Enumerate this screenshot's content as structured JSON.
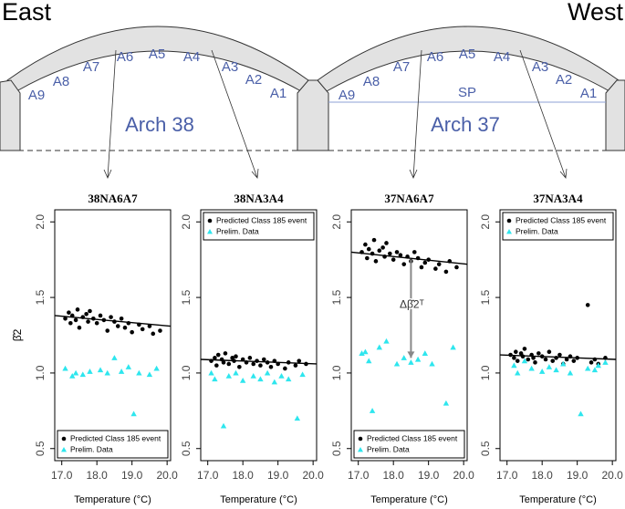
{
  "diagram": {
    "east": "East",
    "west": "West",
    "arches": [
      {
        "name": "Arch 38",
        "labels": [
          "A9",
          "A8",
          "A7",
          "A6",
          "A5",
          "A4",
          "A3",
          "A2",
          "A1"
        ]
      },
      {
        "name": "Arch 37",
        "labels": [
          "A9",
          "A8",
          "A7",
          "A6",
          "A5",
          "A4",
          "A3",
          "A2",
          "A1"
        ],
        "sp": "SP"
      }
    ]
  },
  "chart_data": [
    {
      "type": "scatter",
      "title": "38NA6A7",
      "ylabel": "β̂2",
      "xlabel": "Temperature (°C)",
      "legend": "bottom-left",
      "xlim": [
        16.8,
        20.1
      ],
      "ylim": [
        0.42,
        2.08
      ],
      "xticks": [
        {
          "value": 17,
          "label": "17.0"
        },
        {
          "value": 18,
          "label": "18.0"
        },
        {
          "value": 19,
          "label": "19.0"
        },
        {
          "value": 20,
          "label": "20.0"
        }
      ],
      "yticks": [
        {
          "value": 0.5,
          "label": "0.5"
        },
        {
          "value": 1,
          "label": "1.0"
        },
        {
          "value": 1.5,
          "label": "1.5"
        },
        {
          "value": 2,
          "label": "2.0"
        }
      ],
      "series": [
        {
          "name": "Predicted Class 185 event",
          "color": "#000000",
          "marker": "circle",
          "x": [
            17.1,
            17.2,
            17.25,
            17.3,
            17.4,
            17.45,
            17.5,
            17.6,
            17.7,
            17.75,
            17.8,
            17.9,
            18.0,
            18.1,
            18.2,
            18.3,
            18.4,
            18.5,
            18.6,
            18.7,
            18.8,
            18.9,
            19.0,
            19.2,
            19.3,
            19.5,
            19.6,
            19.8
          ],
          "values": [
            1.36,
            1.4,
            1.33,
            1.38,
            1.35,
            1.42,
            1.3,
            1.37,
            1.39,
            1.34,
            1.41,
            1.36,
            1.33,
            1.38,
            1.35,
            1.28,
            1.37,
            1.34,
            1.31,
            1.36,
            1.3,
            1.33,
            1.27,
            1.32,
            1.29,
            1.31,
            1.26,
            1.28
          ]
        },
        {
          "name": "Prelim. Data",
          "color": "#2ee6ee",
          "marker": "triangle",
          "x": [
            17.1,
            17.3,
            17.4,
            17.6,
            17.8,
            18.1,
            18.3,
            18.5,
            18.7,
            18.9,
            19.05,
            19.2,
            19.5,
            19.7
          ],
          "values": [
            1.03,
            0.98,
            1.0,
            0.99,
            1.01,
            1.02,
            1.0,
            1.1,
            1.01,
            1.04,
            0.73,
            1.0,
            0.99,
            1.03
          ]
        }
      ],
      "fit": {
        "x": [
          16.8,
          20.1
        ],
        "y": [
          1.38,
          1.31
        ]
      }
    },
    {
      "type": "scatter",
      "title": "38NA3A4",
      "xlabel": "Temperature (°C)",
      "legend": "top-left",
      "xlim": [
        16.8,
        20.1
      ],
      "ylim": [
        0.42,
        2.08
      ],
      "xticks": [
        {
          "value": 17,
          "label": "17.0"
        },
        {
          "value": 18,
          "label": "18.0"
        },
        {
          "value": 19,
          "label": "19.0"
        },
        {
          "value": 20,
          "label": "20.0"
        }
      ],
      "yticks": [
        {
          "value": 0.5,
          "label": "0.5"
        },
        {
          "value": 1,
          "label": "1.0"
        },
        {
          "value": 1.5,
          "label": "1.5"
        },
        {
          "value": 2,
          "label": "2.0"
        }
      ],
      "series": [
        {
          "name": "Predicted Class 185 event",
          "color": "#000000",
          "marker": "circle",
          "x": [
            17.1,
            17.2,
            17.25,
            17.3,
            17.4,
            17.45,
            17.5,
            17.6,
            17.7,
            17.75,
            17.8,
            17.9,
            18.0,
            18.1,
            18.2,
            18.3,
            18.4,
            18.5,
            18.6,
            18.7,
            18.8,
            18.9,
            19.0,
            19.2,
            19.3,
            19.5,
            19.6,
            19.8
          ],
          "values": [
            1.08,
            1.1,
            1.05,
            1.12,
            1.09,
            1.07,
            1.13,
            1.06,
            1.1,
            1.08,
            1.11,
            1.04,
            1.09,
            1.07,
            1.1,
            1.06,
            1.08,
            1.05,
            1.09,
            1.07,
            1.04,
            1.08,
            1.06,
            1.03,
            1.07,
            1.05,
            1.08,
            1.06
          ]
        },
        {
          "name": "Prelim. Data",
          "color": "#2ee6ee",
          "marker": "triangle",
          "x": [
            17.1,
            17.2,
            17.45,
            17.6,
            17.8,
            18.0,
            18.3,
            18.5,
            18.7,
            18.9,
            19.1,
            19.3,
            19.55,
            19.7
          ],
          "values": [
            1.0,
            0.96,
            0.65,
            0.98,
            1.0,
            0.95,
            0.98,
            0.96,
            1.0,
            0.94,
            0.98,
            0.96,
            0.7,
            0.99
          ]
        }
      ],
      "fit": {
        "x": [
          16.8,
          20.1
        ],
        "y": [
          1.09,
          1.06
        ]
      }
    },
    {
      "type": "scatter",
      "title": "37NA6A7",
      "xlabel": "Temperature (°C)",
      "legend": "bottom-left",
      "annotation": "Δβ̂2ᵀ",
      "arrow": {
        "x": 18.5,
        "y": [
          1.75,
          1.1
        ]
      },
      "xlim": [
        16.8,
        20.1
      ],
      "ylim": [
        0.42,
        2.08
      ],
      "xticks": [
        {
          "value": 17,
          "label": "17.0"
        },
        {
          "value": 18,
          "label": "18.0"
        },
        {
          "value": 19,
          "label": "19.0"
        },
        {
          "value": 20,
          "label": "20.0"
        }
      ],
      "yticks": [
        {
          "value": 0.5,
          "label": "0.5"
        },
        {
          "value": 1,
          "label": "1.0"
        },
        {
          "value": 1.5,
          "label": "1.5"
        },
        {
          "value": 2,
          "label": "2.0"
        }
      ],
      "series": [
        {
          "name": "Predicted Class 185 event",
          "color": "#000000",
          "marker": "circle",
          "x": [
            17.1,
            17.2,
            17.25,
            17.3,
            17.4,
            17.45,
            17.5,
            17.6,
            17.7,
            17.75,
            17.8,
            17.9,
            18.0,
            18.1,
            18.2,
            18.3,
            18.4,
            18.5,
            18.6,
            18.7,
            18.8,
            18.9,
            19.0,
            19.2,
            19.3,
            19.5,
            19.6,
            19.8
          ],
          "values": [
            1.8,
            1.85,
            1.76,
            1.82,
            1.79,
            1.88,
            1.74,
            1.81,
            1.83,
            1.77,
            1.86,
            1.79,
            1.75,
            1.8,
            1.78,
            1.72,
            1.77,
            1.74,
            1.8,
            1.76,
            1.7,
            1.73,
            1.75,
            1.69,
            1.72,
            1.67,
            1.74,
            1.7
          ]
        },
        {
          "name": "Prelim. Data",
          "color": "#2ee6ee",
          "marker": "triangle",
          "x": [
            17.1,
            17.2,
            17.3,
            17.4,
            17.6,
            17.8,
            18.1,
            18.3,
            18.5,
            18.7,
            18.9,
            19.1,
            19.5,
            19.7
          ],
          "values": [
            1.13,
            1.14,
            1.08,
            0.75,
            1.17,
            1.21,
            1.06,
            1.1,
            1.07,
            1.09,
            1.13,
            1.06,
            0.8,
            1.17
          ]
        }
      ],
      "fit": {
        "x": [
          16.8,
          20.1
        ],
        "y": [
          1.8,
          1.72
        ]
      }
    },
    {
      "type": "scatter",
      "title": "37NA3A4",
      "xlabel": "Temperature (°C)",
      "legend": "top-left",
      "xlim": [
        16.8,
        20.1
      ],
      "ylim": [
        0.42,
        2.08
      ],
      "xticks": [
        {
          "value": 17,
          "label": "17.0"
        },
        {
          "value": 18,
          "label": "18.0"
        },
        {
          "value": 19,
          "label": "19.0"
        },
        {
          "value": 20,
          "label": "20.0"
        }
      ],
      "yticks": [
        {
          "value": 0.5,
          "label": "0.5"
        },
        {
          "value": 1,
          "label": "1.0"
        },
        {
          "value": 1.5,
          "label": "1.5"
        },
        {
          "value": 2,
          "label": "2.0"
        }
      ],
      "series": [
        {
          "name": "Predicted Class 185 event",
          "color": "#000000",
          "marker": "circle",
          "x": [
            17.1,
            17.2,
            17.25,
            17.3,
            17.4,
            17.45,
            17.5,
            17.6,
            17.7,
            17.75,
            17.8,
            17.9,
            18.0,
            18.1,
            18.2,
            18.3,
            18.4,
            18.5,
            18.6,
            18.7,
            18.8,
            18.9,
            19.0,
            19.3,
            19.4,
            19.5,
            19.6,
            19.8
          ],
          "values": [
            1.12,
            1.1,
            1.14,
            1.08,
            1.13,
            1.11,
            1.16,
            1.09,
            1.12,
            1.1,
            1.07,
            1.13,
            1.11,
            1.09,
            1.14,
            1.08,
            1.1,
            1.12,
            1.06,
            1.09,
            1.11,
            1.08,
            1.1,
            1.45,
            1.07,
            1.09,
            1.06,
            1.1
          ]
        },
        {
          "name": "Prelim. Data",
          "color": "#2ee6ee",
          "marker": "triangle",
          "x": [
            17.2,
            17.3,
            17.5,
            17.7,
            18.0,
            18.2,
            18.4,
            18.6,
            18.8,
            19.1,
            19.3,
            19.5,
            19.6,
            19.8
          ],
          "values": [
            1.05,
            1.0,
            1.08,
            1.03,
            1.01,
            1.04,
            1.02,
            1.06,
            1.0,
            0.73,
            1.03,
            1.02,
            1.05,
            1.07
          ]
        }
      ],
      "fit": {
        "x": [
          16.8,
          20.1
        ],
        "y": [
          1.12,
          1.09
        ]
      }
    }
  ]
}
